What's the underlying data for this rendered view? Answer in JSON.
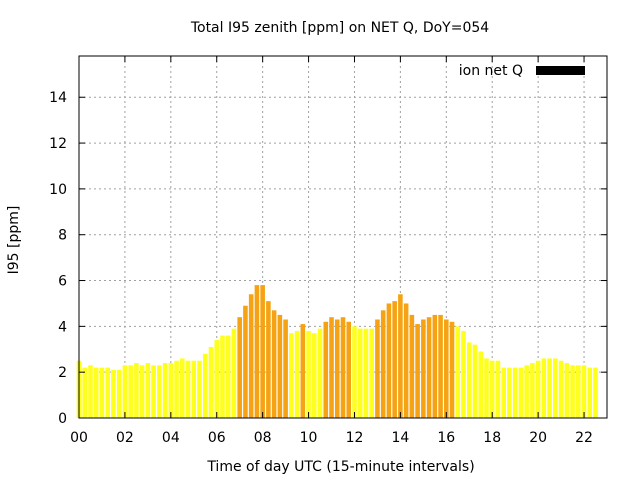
{
  "chart_data": {
    "type": "bar",
    "title": "Total I95 zenith [ppm] on NET Q, DoY=054",
    "xlabel": "Time of day UTC (15-minute intervals)",
    "ylabel": "I95 [ppm]",
    "xlim": [
      0,
      23
    ],
    "ylim": [
      0,
      15.8
    ],
    "x_ticks": [
      "00",
      "02",
      "04",
      "06",
      "08",
      "10",
      "12",
      "14",
      "16",
      "18",
      "20",
      "22"
    ],
    "y_ticks": [
      "0",
      "2",
      "4",
      "6",
      "8",
      "10",
      "12",
      "14"
    ],
    "grid": true,
    "legend": {
      "position": "top-right",
      "entries": [
        {
          "label": "ion net Q",
          "color": "#000000"
        }
      ]
    },
    "colors": {
      "low": "#ffff1e",
      "high": "#f5a314",
      "frame": "#000000",
      "grid": "#a0a0a0"
    },
    "interval_hours": 0.25,
    "values": [
      2.5,
      2.2,
      2.3,
      2.2,
      2.2,
      2.2,
      2.1,
      2.1,
      2.3,
      2.3,
      2.4,
      2.3,
      2.4,
      2.3,
      2.3,
      2.4,
      2.4,
      2.5,
      2.6,
      2.5,
      2.5,
      2.5,
      2.8,
      3.1,
      3.4,
      3.6,
      3.6,
      3.9,
      4.4,
      4.9,
      5.4,
      5.8,
      5.8,
      5.1,
      4.7,
      4.5,
      4.3,
      3.7,
      3.8,
      4.1,
      3.8,
      3.7,
      3.9,
      4.2,
      4.4,
      4.3,
      4.4,
      4.2,
      4.0,
      3.9,
      3.9,
      3.9,
      4.3,
      4.7,
      5.0,
      5.1,
      5.4,
      5.0,
      4.5,
      4.1,
      4.3,
      4.4,
      4.5,
      4.5,
      4.3,
      4.2,
      4.0,
      3.8,
      3.3,
      3.2,
      2.9,
      2.6,
      2.5,
      2.5,
      2.2,
      2.2,
      2.2,
      2.2,
      2.3,
      2.4,
      2.5,
      2.6,
      2.6,
      2.6,
      2.5,
      2.4,
      2.3,
      2.3,
      2.3,
      2.2,
      2.2
    ],
    "highlight": [
      false,
      false,
      false,
      false,
      false,
      false,
      false,
      false,
      false,
      false,
      false,
      false,
      false,
      false,
      false,
      false,
      false,
      false,
      false,
      false,
      false,
      false,
      false,
      false,
      false,
      false,
      false,
      false,
      true,
      true,
      true,
      true,
      true,
      true,
      true,
      true,
      true,
      false,
      false,
      true,
      false,
      false,
      false,
      true,
      true,
      true,
      true,
      true,
      false,
      false,
      false,
      false,
      true,
      true,
      true,
      true,
      true,
      true,
      true,
      true,
      true,
      true,
      true,
      true,
      true,
      true,
      false,
      false,
      false,
      false,
      false,
      false,
      false,
      false,
      false,
      false,
      false,
      false,
      false,
      false,
      false,
      false,
      false,
      false,
      false,
      false,
      false,
      false,
      false,
      false,
      false
    ]
  }
}
